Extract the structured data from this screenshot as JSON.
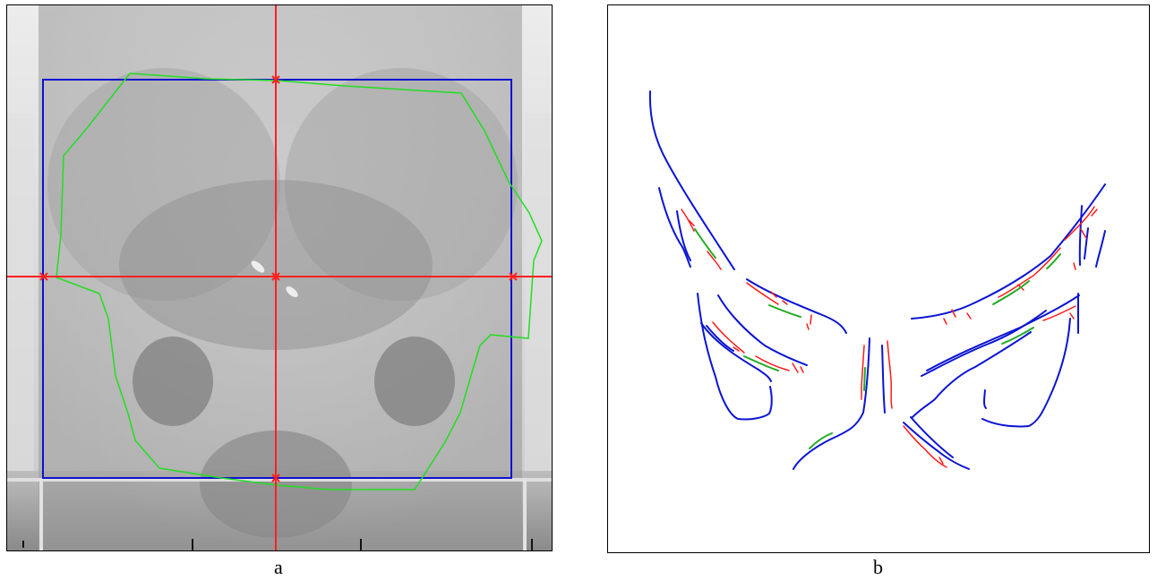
{
  "figure": {
    "panel_a": {
      "caption": "a",
      "colors": {
        "bounding_box": "#1010d0",
        "crosshair": "#ff2020",
        "contour": "#22dd22",
        "background": "#cfcfcf"
      }
    },
    "panel_b": {
      "caption": "b",
      "colors": {
        "edge_primary": "#0a14d2",
        "edge_secondary": "#ff1a1a",
        "edge_match": "#22aa22",
        "background": "#ffffff"
      }
    }
  }
}
